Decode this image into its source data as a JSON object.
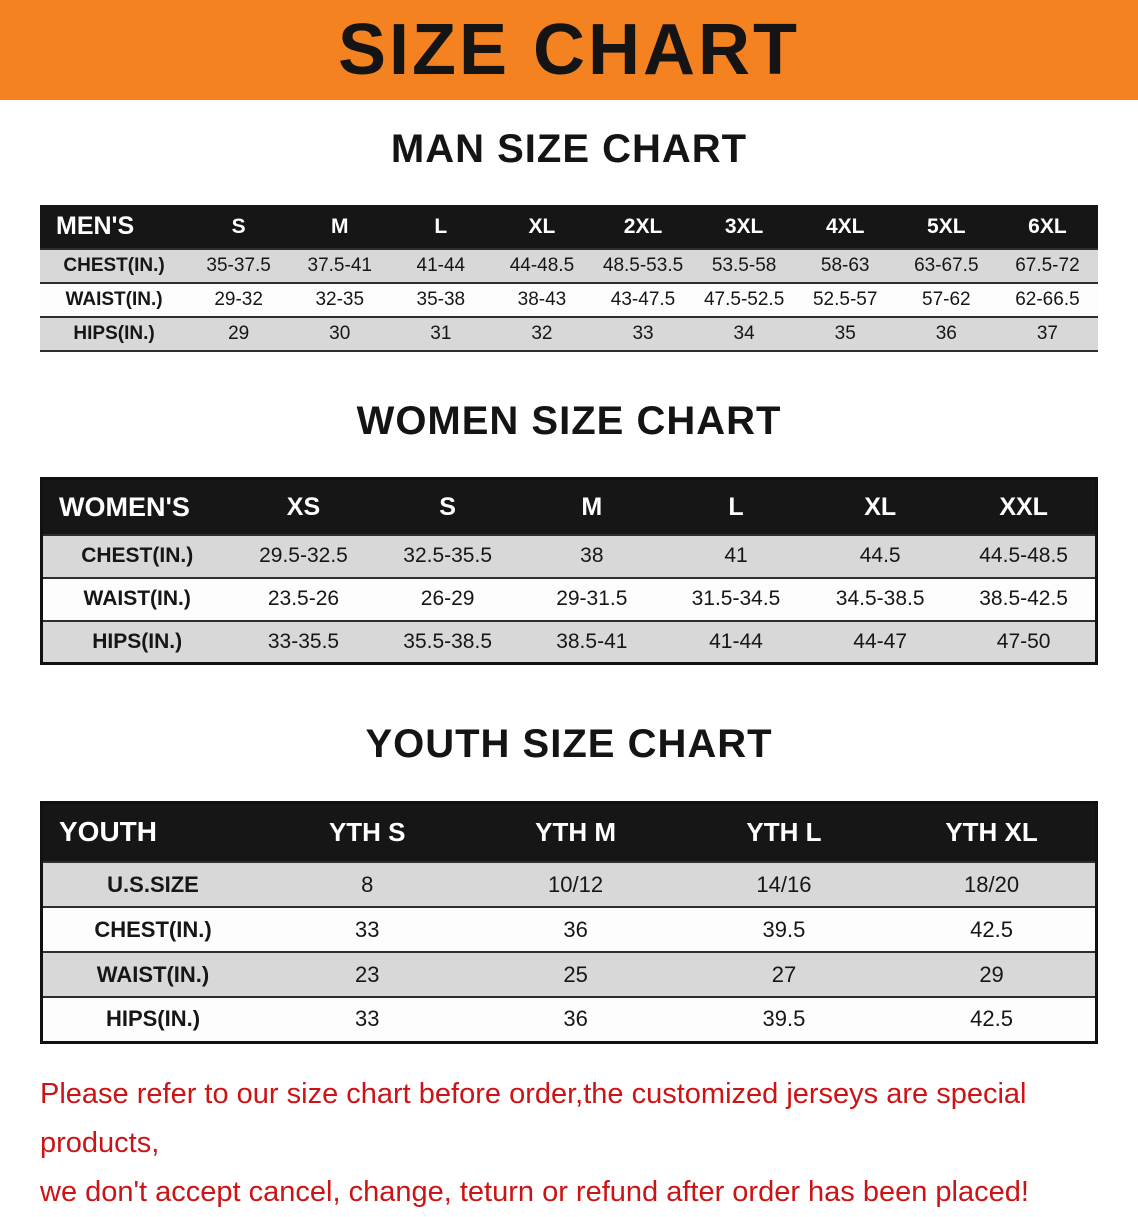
{
  "banner": {
    "title": "SIZE CHART"
  },
  "men": {
    "section_title": "MAN SIZE CHART",
    "header": [
      "MEN'S",
      "S",
      "M",
      "L",
      "XL",
      "2XL",
      "3XL",
      "4XL",
      "5XL",
      "6XL"
    ],
    "rows": [
      {
        "label": "CHEST(IN.)",
        "values": [
          "35-37.5",
          "37.5-41",
          "41-44",
          "44-48.5",
          "48.5-53.5",
          "53.5-58",
          "58-63",
          "63-67.5",
          "67.5-72"
        ]
      },
      {
        "label": "WAIST(IN.)",
        "values": [
          "29-32",
          "32-35",
          "35-38",
          "38-43",
          "43-47.5",
          "47.5-52.5",
          "52.5-57",
          "57-62",
          "62-66.5"
        ]
      },
      {
        "label": "HIPS(IN.)",
        "values": [
          "29",
          "30",
          "31",
          "32",
          "33",
          "34",
          "35",
          "36",
          "37"
        ]
      }
    ]
  },
  "women": {
    "section_title": "WOMEN SIZE CHART",
    "header": [
      "WOMEN'S",
      "XS",
      "S",
      "M",
      "L",
      "XL",
      "XXL"
    ],
    "rows": [
      {
        "label": "CHEST(IN.)",
        "values": [
          "29.5-32.5",
          "32.5-35.5",
          "38",
          "41",
          "44.5",
          "44.5-48.5"
        ]
      },
      {
        "label": "WAIST(IN.)",
        "values": [
          "23.5-26",
          "26-29",
          "29-31.5",
          "31.5-34.5",
          "34.5-38.5",
          "38.5-42.5"
        ]
      },
      {
        "label": "HIPS(IN.)",
        "values": [
          "33-35.5",
          "35.5-38.5",
          "38.5-41",
          "41-44",
          "44-47",
          "47-50"
        ]
      }
    ]
  },
  "youth": {
    "section_title": "YOUTH SIZE CHART",
    "header": [
      "YOUTH",
      "YTH S",
      "YTH M",
      "YTH L",
      "YTH XL"
    ],
    "rows": [
      {
        "label": "U.S.SIZE",
        "values": [
          "8",
          "10/12",
          "14/16",
          "18/20"
        ]
      },
      {
        "label": "CHEST(IN.)",
        "values": [
          "33",
          "36",
          "39.5",
          "42.5"
        ]
      },
      {
        "label": "WAIST(IN.)",
        "values": [
          "23",
          "25",
          "27",
          "29"
        ]
      },
      {
        "label": "HIPS(IN.)",
        "values": [
          "33",
          "36",
          "39.5",
          "42.5"
        ]
      }
    ]
  },
  "footer": {
    "line1": "Please refer to our size chart before order,the customized jerseys are special products,",
    "line2": "we don't accept cancel, change, teturn or refund after order has been placed!"
  },
  "colors": {
    "banner_orange": "#F58220",
    "table_header_black": "#161616",
    "row_gray": "#d8d8d8",
    "footer_red": "#cc1416"
  }
}
